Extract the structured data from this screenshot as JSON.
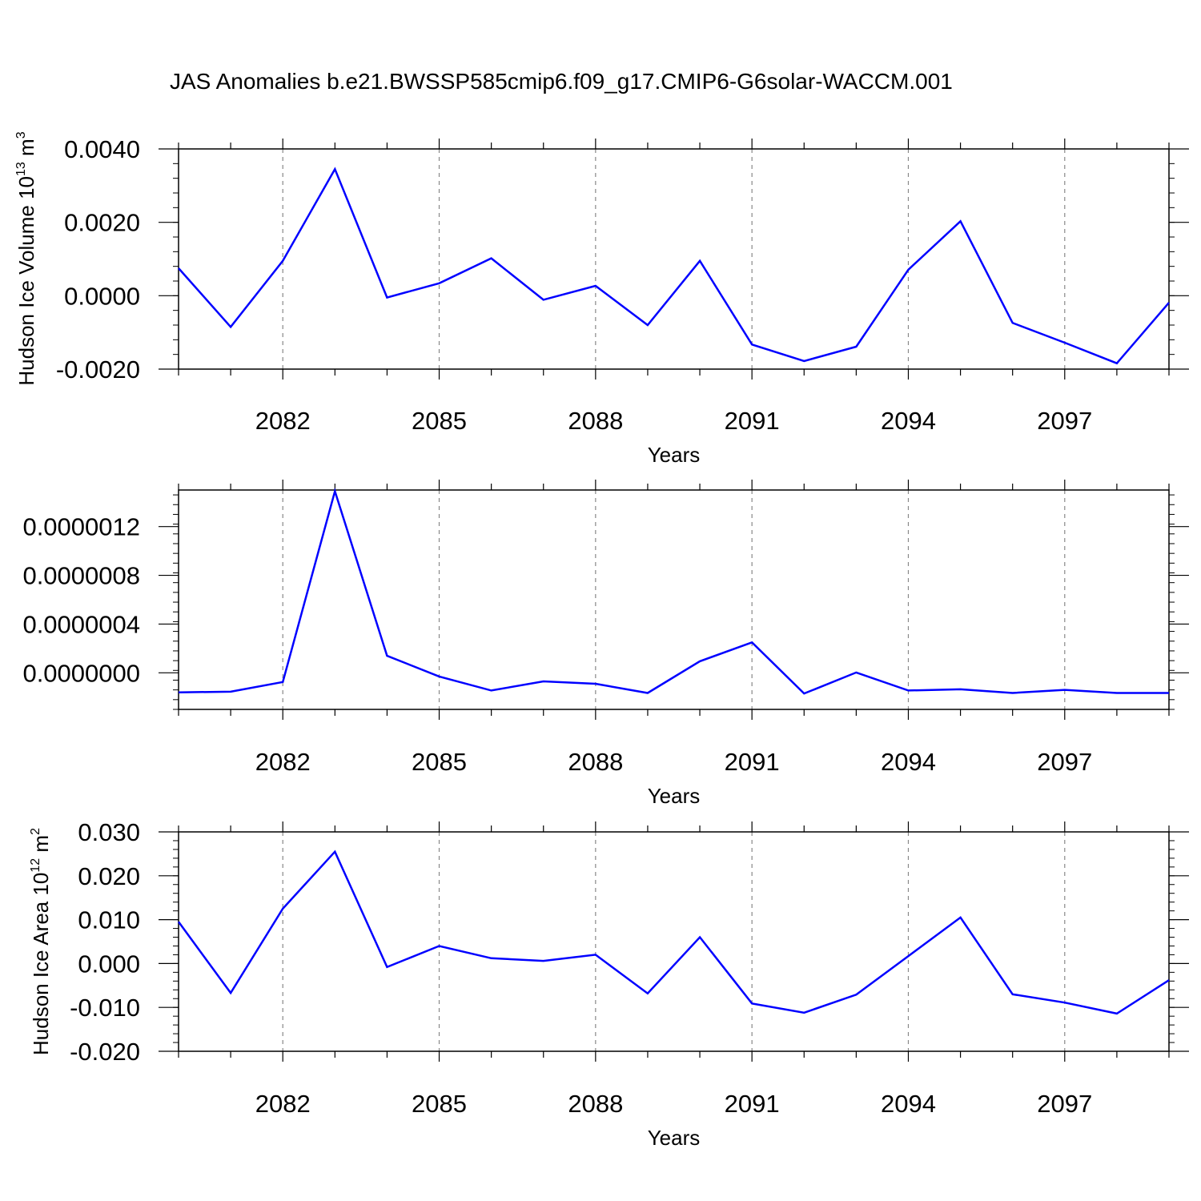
{
  "title": "JAS Anomalies b.e21.BWSSP585cmip6.f09_g17.CMIP6-G6solar-WACCM.001",
  "chart_data": [
    {
      "type": "line",
      "xlabel": "Years",
      "ylabel": {
        "base": "Hudson Ice Volume 10",
        "exp": "13",
        "unit": " m",
        "unit_exp": "3"
      },
      "xlim": [
        2080,
        2099
      ],
      "ylim": [
        -0.002,
        0.004
      ],
      "y_ticks": [
        -0.002,
        0.0,
        0.002,
        0.004
      ],
      "y_tick_labels": [
        "-0.0020",
        "0.0000",
        "0.0020",
        "0.0040"
      ],
      "x_ticks": [
        2082,
        2085,
        2088,
        2091,
        2094,
        2097
      ],
      "x_tick_labels": [
        "2082",
        "2085",
        "2088",
        "2091",
        "2094",
        "2097"
      ],
      "grid": "dashed vertical at labeled years",
      "line_color": "#0000ff",
      "x": [
        2080,
        2081,
        2082,
        2083,
        2084,
        2085,
        2086,
        2087,
        2088,
        2089,
        2090,
        2091,
        2092,
        2093,
        2094,
        2095,
        2096,
        2097,
        2098,
        2099
      ],
      "y": [
        0.00075,
        -0.00085,
        0.00095,
        0.00345,
        -5e-05,
        0.00034,
        0.00102,
        -0.00011,
        0.00027,
        -0.0008,
        0.00095,
        -0.00133,
        -0.00178,
        -0.00139,
        0.00071,
        0.00203,
        -0.00074,
        -0.00128,
        -0.00184,
        -0.00019
      ]
    },
    {
      "type": "line",
      "xlabel": "Years",
      "ylabel": null,
      "xlim": [
        2080,
        2099
      ],
      "ylim": [
        -3e-07,
        1.5e-06
      ],
      "y_ticks": [
        0.0,
        4e-07,
        8e-07,
        1.2e-06
      ],
      "y_tick_labels": [
        "0.0000000",
        "0.0000004",
        "0.0000008",
        "0.0000012"
      ],
      "x_ticks": [
        2082,
        2085,
        2088,
        2091,
        2094,
        2097
      ],
      "x_tick_labels": [
        "2082",
        "2085",
        "2088",
        "2091",
        "2094",
        "2097"
      ],
      "grid": "dashed vertical at labeled years",
      "line_color": "#0000ff",
      "x": [
        2080,
        2081,
        2082,
        2083,
        2084,
        2085,
        2086,
        2087,
        2088,
        2089,
        2090,
        2091,
        2092,
        2093,
        2094,
        2095,
        2096,
        2097,
        2098,
        2099
      ],
      "y": [
        -1.6e-07,
        -1.55e-07,
        -7.5e-08,
        1.49e-06,
        1.4e-07,
        -3e-08,
        -1.45e-07,
        -7e-08,
        -9e-08,
        -1.65e-07,
        9.5e-08,
        2.5e-07,
        -1.7e-07,
        3e-09,
        -1.45e-07,
        -1.35e-07,
        -1.65e-07,
        -1.4e-07,
        -1.65e-07,
        -1.65e-07
      ]
    },
    {
      "type": "line",
      "xlabel": "Years",
      "ylabel": {
        "base": "Hudson Ice Area 10",
        "exp": "12",
        "unit": " m",
        "unit_exp": "2"
      },
      "xlim": [
        2080,
        2099
      ],
      "ylim": [
        -0.02,
        0.03
      ],
      "y_ticks": [
        -0.02,
        -0.01,
        0.0,
        0.01,
        0.02,
        0.03
      ],
      "y_tick_labels": [
        "-0.020",
        "-0.010",
        "0.000",
        "0.010",
        "0.020",
        "0.030"
      ],
      "x_ticks": [
        2082,
        2085,
        2088,
        2091,
        2094,
        2097
      ],
      "x_tick_labels": [
        "2082",
        "2085",
        "2088",
        "2091",
        "2094",
        "2097"
      ],
      "grid": "dashed vertical at labeled years",
      "line_color": "#0000ff",
      "x": [
        2080,
        2081,
        2082,
        2083,
        2084,
        2085,
        2086,
        2087,
        2088,
        2089,
        2090,
        2091,
        2092,
        2093,
        2094,
        2095,
        2096,
        2097,
        2098,
        2099
      ],
      "y": [
        0.0095,
        -0.0067,
        0.0125,
        0.0255,
        -0.0008,
        0.004,
        0.0012,
        0.0006,
        0.002,
        -0.0068,
        0.006,
        -0.0091,
        -0.0112,
        -0.0071,
        0.0017,
        0.0105,
        -0.007,
        -0.0089,
        -0.0114,
        -0.0038
      ]
    }
  ]
}
